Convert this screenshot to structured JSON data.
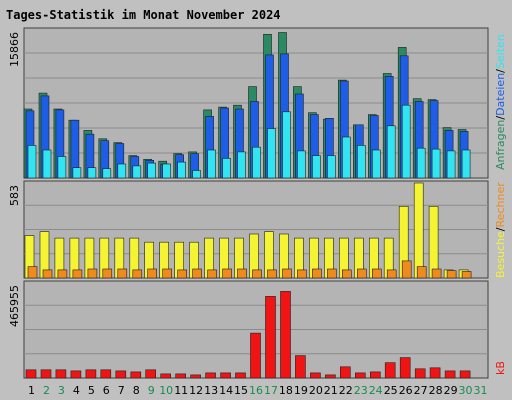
{
  "title": "Tages-Statistik im Monat November 2024",
  "colors": {
    "background": "#c0c0c0",
    "plot_bg": "#b4b4b4",
    "grid": "#8c8c8c",
    "title": "#0000c8",
    "anfragen": "#2a8a62",
    "dateien": "#1e5ee6",
    "seiten": "#30e4f2",
    "besuche": "#f4f432",
    "rechner": "#f08a1a",
    "kb": "#f01414",
    "weekday_label": "#000000",
    "weekend_label": "#1a8a52"
  },
  "chart_data": [
    {
      "type": "bar",
      "panel": "requests",
      "ylabel": "15866",
      "ylim": [
        0,
        15866
      ],
      "categories": [
        "1",
        "2",
        "3",
        "4",
        "5",
        "6",
        "7",
        "8",
        "9",
        "10",
        "11",
        "12",
        "13",
        "14",
        "15",
        "16",
        "17",
        "18",
        "19",
        "20",
        "21",
        "22",
        "23",
        "24",
        "25",
        "26",
        "27",
        "28",
        "29",
        "30",
        "31"
      ],
      "series": [
        {
          "name": "Anfragen",
          "values": [
            7400,
            9100,
            7400,
            6200,
            5100,
            4200,
            3800,
            2400,
            2000,
            1800,
            2600,
            2800,
            7300,
            7600,
            7800,
            9800,
            15400,
            15600,
            9800,
            7000,
            6300,
            10500,
            5700,
            6800,
            11200,
            14000,
            8500,
            8400,
            5400,
            5200,
            0
          ]
        },
        {
          "name": "Dateien",
          "values": [
            7200,
            8800,
            7300,
            6200,
            4700,
            4000,
            3700,
            2300,
            1900,
            1500,
            2500,
            2600,
            6600,
            7500,
            7400,
            8200,
            13200,
            13300,
            9000,
            6800,
            6400,
            10400,
            5700,
            6700,
            10900,
            13100,
            8200,
            8300,
            5100,
            5000,
            0
          ]
        },
        {
          "name": "Seiten",
          "values": [
            3500,
            3000,
            2300,
            1100,
            1100,
            1000,
            1500,
            1300,
            1600,
            1500,
            1700,
            800,
            3000,
            2100,
            2800,
            3300,
            5300,
            7100,
            2900,
            2400,
            2400,
            4400,
            3500,
            3000,
            5600,
            7800,
            3200,
            3100,
            2900,
            3000,
            0
          ]
        }
      ]
    },
    {
      "type": "bar",
      "panel": "visits",
      "ylabel": "583",
      "ylim": [
        0,
        583
      ],
      "categories": [
        "1",
        "2",
        "3",
        "4",
        "5",
        "6",
        "7",
        "8",
        "9",
        "10",
        "11",
        "12",
        "13",
        "14",
        "15",
        "16",
        "17",
        "18",
        "19",
        "20",
        "21",
        "22",
        "23",
        "24",
        "25",
        "26",
        "27",
        "28",
        "29",
        "30",
        "31"
      ],
      "series": [
        {
          "name": "Besuche",
          "values": [
            260,
            284,
            245,
            245,
            245,
            245,
            245,
            245,
            220,
            220,
            220,
            220,
            245,
            245,
            245,
            270,
            284,
            270,
            245,
            245,
            245,
            245,
            245,
            245,
            245,
            440,
            583,
            440,
            50,
            50,
            0
          ]
        },
        {
          "name": "Rechner",
          "values": [
            70,
            50,
            50,
            50,
            55,
            55,
            55,
            50,
            55,
            55,
            50,
            55,
            50,
            55,
            55,
            50,
            50,
            55,
            50,
            55,
            55,
            50,
            55,
            55,
            50,
            105,
            70,
            55,
            45,
            40,
            0
          ]
        }
      ]
    },
    {
      "type": "bar",
      "panel": "kb",
      "ylabel": "465955",
      "ylim": [
        0,
        465955
      ],
      "categories": [
        "1",
        "2",
        "3",
        "4",
        "5",
        "6",
        "7",
        "8",
        "9",
        "10",
        "11",
        "12",
        "13",
        "14",
        "15",
        "16",
        "17",
        "18",
        "19",
        "20",
        "21",
        "22",
        "23",
        "24",
        "25",
        "26",
        "27",
        "28",
        "29",
        "30",
        "31"
      ],
      "series": [
        {
          "name": "kB",
          "values": [
            40000,
            40000,
            40000,
            35000,
            40000,
            40000,
            35000,
            30000,
            40000,
            20000,
            20000,
            15000,
            25000,
            25000,
            25000,
            220000,
            400000,
            425000,
            110000,
            25000,
            15000,
            55000,
            25000,
            30000,
            75000,
            100000,
            45000,
            50000,
            35000,
            35000,
            0
          ]
        }
      ]
    }
  ],
  "legend": {
    "panel1": [
      {
        "label": "Anfragen",
        "color_key": "anfragen"
      },
      {
        "label": "Dateien",
        "color_key": "dateien"
      },
      {
        "label": "Seiten",
        "color_key": "seiten"
      }
    ],
    "panel2": [
      {
        "label": "Besuche",
        "color_key": "besuche"
      },
      {
        "label": "Rechner",
        "color_key": "rechner"
      }
    ],
    "panel3": [
      {
        "label": "kB",
        "color_key": "kb"
      }
    ],
    "separator": "/"
  },
  "weekend_days": [
    "2",
    "3",
    "9",
    "10",
    "16",
    "17",
    "23",
    "24",
    "30",
    "31"
  ]
}
